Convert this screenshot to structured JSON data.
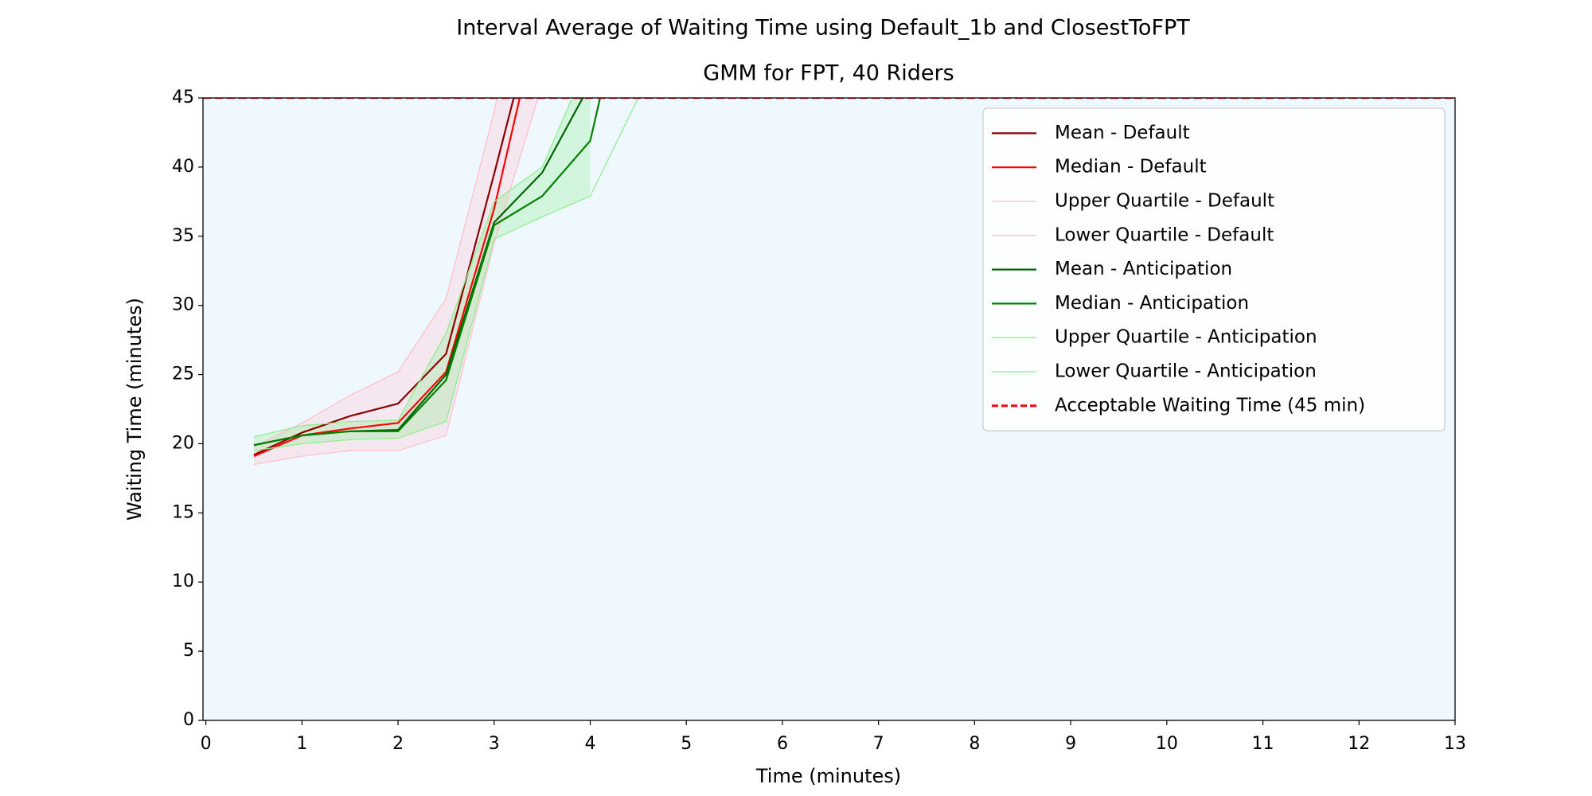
{
  "chart_data": {
    "type": "line",
    "title": "Interval Average of Waiting Time using Default_1b and ClosestToFPT",
    "subtitle": "GMM for FPT, 40 Riders",
    "x_label": "Time (minutes)",
    "y_label": "Waiting Time (minutes)",
    "x": [
      0.5,
      1,
      1.5,
      2,
      2.5,
      3,
      3.5,
      4,
      4.5
    ],
    "series": [
      {
        "name": "Mean - Default",
        "color": "#8b0000",
        "values": [
          19.2,
          20.8,
          22.0,
          22.9,
          26.5,
          39.5,
          53,
          null,
          null
        ]
      },
      {
        "name": "Median - Default",
        "color": "#ff0000",
        "values": [
          19.1,
          20.6,
          21.1,
          21.5,
          25.2,
          37.0,
          52,
          null,
          null
        ]
      },
      {
        "name": "Upper Quartile - Default",
        "color": "#ffc0cb",
        "values": [
          19.8,
          21.5,
          23.5,
          25.2,
          30.5,
          44,
          60,
          null,
          null
        ]
      },
      {
        "name": "Lower Quartile - Default",
        "color": "#ffc0cb",
        "values": [
          18.5,
          19.1,
          19.5,
          19.5,
          20.6,
          34.5,
          46,
          null,
          null
        ]
      },
      {
        "name": "Mean - Anticipation",
        "color": "#006400",
        "values": [
          19.9,
          20.6,
          20.9,
          21.0,
          25.0,
          36.0,
          39.6,
          46,
          null
        ]
      },
      {
        "name": "Median - Anticipation",
        "color": "#008000",
        "values": [
          19.9,
          20.6,
          20.9,
          20.9,
          24.6,
          35.8,
          37.9,
          41.9,
          57
        ]
      },
      {
        "name": "Upper Quartile - Anticipation",
        "color": "#90ee90",
        "values": [
          20.5,
          21.3,
          21.6,
          21.7,
          28.0,
          37.5,
          40.0,
          48,
          null
        ]
      },
      {
        "name": "Lower Quartile - Anticipation",
        "color": "#90ee90",
        "values": [
          19.5,
          20.0,
          20.3,
          20.4,
          21.6,
          34.8,
          36.4,
          37.9,
          45
        ]
      }
    ],
    "bands": [
      {
        "series": [
          2,
          3
        ],
        "color": "#ffc0cb"
      },
      {
        "series": [
          6,
          7
        ],
        "color": "#90ee90"
      }
    ],
    "reference_lines": [
      {
        "name": "Acceptable Waiting Time (45 min)",
        "value": 45,
        "color": "#ff0000"
      }
    ],
    "xlim": [
      -0.03,
      13
    ],
    "xticks": [
      0,
      1,
      2,
      3,
      4,
      5,
      6,
      7,
      8,
      9,
      10,
      11,
      12,
      13
    ],
    "ylim": [
      0,
      45
    ],
    "yticks": [
      0,
      5,
      10,
      15,
      20,
      25,
      30,
      35,
      40,
      45
    ],
    "background": "#f0f8ff",
    "legend": "upper right"
  }
}
